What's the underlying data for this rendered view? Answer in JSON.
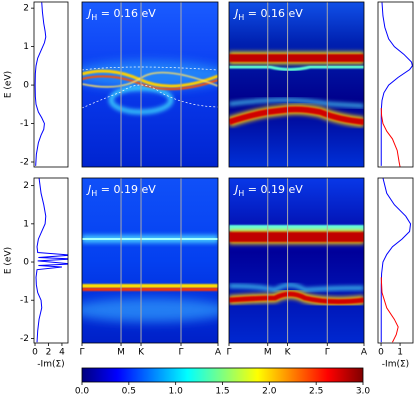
{
  "chart_data": [
    {
      "type": "line",
      "ylabel": "E (eV)",
      "ylim": [
        -2.13,
        2.16
      ],
      "yticks": [
        -2,
        -1,
        0,
        1,
        2
      ],
      "xlim": [
        -0.15,
        4.9
      ],
      "series": [
        {
          "color": "#0000ff",
          "y": [
            2.15,
            1.9,
            1.6,
            1.4,
            1.25,
            1.1,
            0.9,
            0.7,
            0.5,
            0.3,
            0,
            -0.3,
            -0.5,
            -0.7,
            -0.85,
            -1.0,
            -1.15,
            -1.3,
            -1.5,
            -1.8,
            -2.1
          ],
          "values": [
            1.0,
            1.1,
            1.3,
            1.5,
            1.6,
            1.4,
            0.9,
            0.4,
            0.15,
            0.05,
            0.02,
            0.05,
            0.15,
            0.5,
            1.0,
            1.4,
            1.3,
            0.9,
            0.5,
            0.2,
            0.1
          ]
        }
      ]
    },
    {
      "type": "heatmap",
      "annotation": {
        "symbol": "J",
        "subscript": "H",
        "text": " = 0.16 eV"
      },
      "xlim": [
        0,
        1
      ],
      "xticks": [
        0.287,
        0.434,
        0.728
      ]
    },
    {
      "type": "heatmap",
      "annotation": {
        "symbol": "J",
        "subscript": "H",
        "text": " = 0.16 eV"
      },
      "xlim": [
        0,
        1
      ],
      "xticks": [
        0.287,
        0.434,
        0.728
      ]
    },
    {
      "type": "line",
      "ylim": [
        -2.13,
        2.16
      ],
      "xlim": [
        -0.16,
        1.68
      ],
      "series": [
        {
          "color": "#0000ff",
          "y": [
            2.15,
            1.8,
            1.5,
            1.2,
            1.0,
            0.8,
            0.6,
            0.5,
            0.4,
            0.2,
            0,
            -0.2,
            -0.4,
            -0.6,
            -0.8,
            -1.0,
            -1.3,
            -1.6,
            -2.1
          ],
          "values": [
            0.05,
            0.1,
            0.2,
            0.4,
            0.7,
            1.2,
            1.6,
            1.65,
            1.5,
            0.9,
            0.4,
            0.15,
            0.05,
            0.02,
            0.01,
            0.01,
            0.01,
            0.01,
            0.01
          ]
        },
        {
          "color": "#ff0000",
          "y": [
            -0.6,
            -0.8,
            -1.0,
            -1.2,
            -1.4,
            -1.7,
            -2.0,
            -2.13
          ],
          "values": [
            0.01,
            0.03,
            0.1,
            0.3,
            0.6,
            0.85,
            0.95,
            1.0
          ]
        }
      ]
    },
    {
      "type": "line",
      "ylabel": "E (eV)",
      "xlabel": "-Im(Σ)",
      "ylim": [
        -2.12,
        2.2
      ],
      "yticks": [
        -2,
        -1,
        0,
        1,
        2
      ],
      "xlim": [
        -0.15,
        4.9
      ],
      "xticks": [
        0,
        2,
        4
      ],
      "series": [
        {
          "color": "#0000ff",
          "y": [
            2.2,
            1.8,
            1.5,
            1.2,
            1.0,
            0.8,
            0.6,
            0.4,
            0.25,
            0.18,
            0.12,
            0.08,
            0.03,
            -0.05,
            -0.09,
            -0.13,
            -0.2,
            -0.4,
            -0.6,
            -0.8,
            -1.0,
            -1.2,
            -1.5,
            -1.8,
            -2.1
          ],
          "values": [
            0.6,
            0.9,
            1.3,
            1.6,
            1.5,
            1.0,
            0.5,
            0.3,
            0.4,
            5.5,
            0.5,
            5.5,
            0.4,
            5.5,
            0.5,
            4.0,
            0.3,
            0.15,
            0.2,
            0.4,
            0.9,
            1.0,
            0.6,
            0.4,
            0.3
          ]
        }
      ]
    },
    {
      "type": "heatmap",
      "annotation": {
        "symbol": "J",
        "subscript": "H",
        "text": " = 0.19 eV"
      },
      "xlim": [
        0,
        1
      ],
      "xticks": [
        {
          "value": 0,
          "label": "Γ"
        },
        {
          "value": 0.287,
          "label": "M"
        },
        {
          "value": 0.434,
          "label": "K"
        },
        {
          "value": 0.728,
          "label": "Γ"
        },
        {
          "value": 1,
          "label": "A"
        }
      ]
    },
    {
      "type": "heatmap",
      "annotation": {
        "symbol": "J",
        "subscript": "H",
        "text": " = 0.19 eV"
      },
      "xlim": [
        0,
        1
      ],
      "xticks": [
        {
          "value": 0,
          "label": "Γ"
        },
        {
          "value": 0.287,
          "label": "M"
        },
        {
          "value": 0.434,
          "label": "K"
        },
        {
          "value": 0.728,
          "label": "Γ"
        },
        {
          "value": 1,
          "label": "A"
        }
      ]
    },
    {
      "type": "line",
      "xlabel": "-Im(Σ)",
      "ylim": [
        -2.12,
        2.2
      ],
      "xlim": [
        -0.16,
        1.68
      ],
      "xticks": [
        0,
        1
      ],
      "series": [
        {
          "color": "#0000ff",
          "y": [
            2.2,
            1.8,
            1.5,
            1.2,
            1.0,
            0.8,
            0.6,
            0.4,
            0.2,
            0,
            -0.3,
            -0.6,
            -1.0,
            -1.5,
            -2.1
          ],
          "values": [
            0.1,
            0.3,
            0.7,
            1.3,
            1.55,
            1.5,
            1.1,
            0.6,
            0.3,
            0.1,
            0.03,
            0.01,
            0.01,
            0.01,
            0.01
          ]
        },
        {
          "color": "#ff0000",
          "y": [
            -0.4,
            -0.8,
            -1.2,
            -1.5,
            -1.7,
            -1.9,
            -2.1
          ],
          "values": [
            0.01,
            0.05,
            0.3,
            0.7,
            0.9,
            0.8,
            0.6
          ]
        }
      ]
    },
    {
      "type": "colorbar",
      "xlim": [
        0,
        3
      ],
      "xticks": [
        {
          "value": 0,
          "label": "0.0"
        },
        {
          "value": 0.5,
          "label": "0.5"
        },
        {
          "value": 1,
          "label": "1.0"
        },
        {
          "value": 1.5,
          "label": "1.5"
        },
        {
          "value": 2,
          "label": "2.0"
        },
        {
          "value": 2.5,
          "label": "2.5"
        },
        {
          "value": 3,
          "label": "3.0"
        }
      ]
    }
  ]
}
